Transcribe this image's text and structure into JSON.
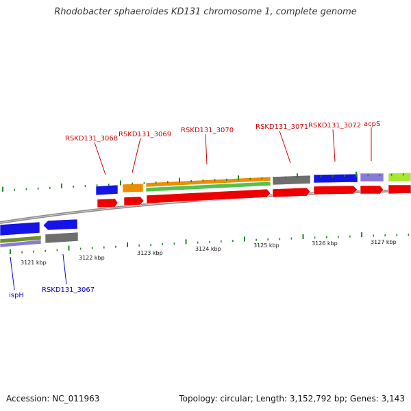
{
  "title": "Rhodobacter sphaeroides KD131 chromosome 1, complete genome",
  "footer": {
    "accession": "Accession: NC_011963",
    "topology": "Topology: circular; Length: 3,152,792 bp; Genes: 3,143"
  },
  "colors": {
    "label_top": "#d40000",
    "label_bottom": "#0000c8",
    "tick": "#1a8a1a",
    "cds": "#ee0000",
    "blue": "#1414e6",
    "orange": "#f08c00",
    "green": "#55c24a",
    "gray": "#6e6e6e",
    "purple": "#8a7ad8",
    "lime": "#a8e830",
    "olive": "#6f8f2a"
  },
  "genes_top": [
    "RSKD131_3068",
    "RSKD131_3069",
    "RSKD131_3070",
    "RSKD131_3071",
    "RSKD131_3072",
    "acpS"
  ],
  "genes_bottom": [
    "ispH",
    "RSKD131_3067"
  ],
  "kbp_labels": [
    "3121 kbp",
    "3122 kbp",
    "3123 kbp",
    "3124 kbp",
    "3125 kbp",
    "3126 kbp",
    "3127 kbp"
  ]
}
